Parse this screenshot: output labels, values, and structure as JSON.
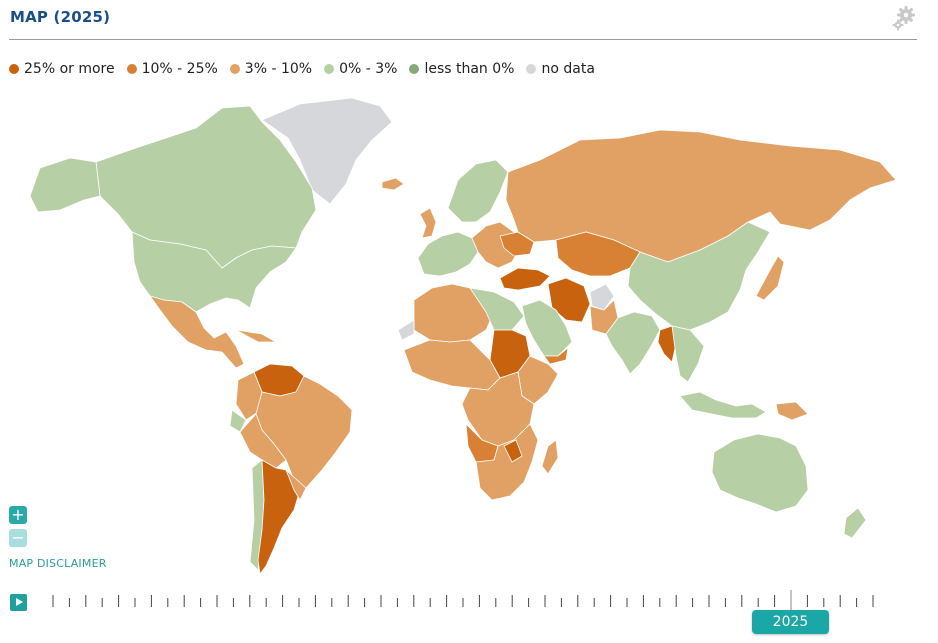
{
  "header": {
    "title": "MAP (2025)"
  },
  "icons": {
    "settings": "gear-icon",
    "play": "play-icon",
    "zoom_in": "plus-icon",
    "zoom_out": "minus-icon"
  },
  "legend": [
    {
      "label": "25% or more",
      "color": "#c8620f"
    },
    {
      "label": "10% - 25%",
      "color": "#d88034"
    },
    {
      "label": "3% - 10%",
      "color": "#e1a164"
    },
    {
      "label": "0% - 3%",
      "color": "#b6cfa5"
    },
    {
      "label": "less than 0%",
      "color": "#89a878"
    },
    {
      "label": "no data",
      "color": "#d6d7da"
    }
  ],
  "map": {
    "disclaimer_label": "MAP DISCLAIMER",
    "colors": {
      "ocean": "#ffffff",
      "border": "#ffffff"
    }
  },
  "timeline": {
    "selected_year": "2025",
    "accent": "#1aa7a6"
  }
}
